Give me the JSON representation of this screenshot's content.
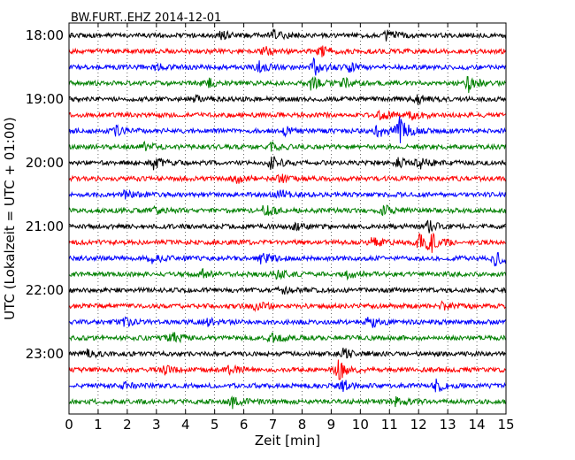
{
  "chart_data": {
    "type": "line",
    "title": "BW.FURT..EHZ 2014-12-01",
    "xlabel": "Zeit  [min]",
    "ylabel": "UTC (Lokalzeit = UTC + 01:00)",
    "xlim": [
      0,
      15
    ],
    "x_ticks": [
      "0",
      "1",
      "2",
      "3",
      "4",
      "5",
      "6",
      "7",
      "8",
      "9",
      "10",
      "11",
      "12",
      "13",
      "14",
      "15"
    ],
    "y_tick_labels": [
      "18:00",
      "19:00",
      "20:00",
      "21:00",
      "22:00",
      "23:00"
    ],
    "rows_per_hour": 4,
    "row_minutes": 15,
    "color_cycle": [
      "#000000",
      "#ff0000",
      "#0000ff",
      "#008000"
    ],
    "grid": true,
    "legend": "none",
    "trace_rows": [
      {
        "start": "18:00",
        "color": "#000000",
        "events": [
          {
            "t": 7.0,
            "a": 1.4
          },
          {
            "t": 10.9,
            "a": 1.4
          },
          {
            "t": 5.2,
            "a": 1.1
          }
        ]
      },
      {
        "start": "18:15",
        "color": "#ff0000",
        "events": [
          {
            "t": 8.6,
            "a": 1.7
          },
          {
            "t": 6.7,
            "a": 1.1
          }
        ]
      },
      {
        "start": "18:30",
        "color": "#0000ff",
        "events": [
          {
            "t": 8.4,
            "a": 2.6
          },
          {
            "t": 6.5,
            "a": 1.6
          },
          {
            "t": 3.0,
            "a": 1.3
          },
          {
            "t": 9.6,
            "a": 1.0
          }
        ]
      },
      {
        "start": "18:45",
        "color": "#008000",
        "events": [
          {
            "t": 8.3,
            "a": 1.8
          },
          {
            "t": 13.7,
            "a": 2.3
          },
          {
            "t": 9.4,
            "a": 1.3
          },
          {
            "t": 4.8,
            "a": 1.0
          }
        ]
      },
      {
        "start": "19:00",
        "color": "#000000",
        "events": [
          {
            "t": 11.9,
            "a": 1.4
          },
          {
            "t": 4.2,
            "a": 1.0
          }
        ]
      },
      {
        "start": "19:15",
        "color": "#ff0000",
        "events": [
          {
            "t": 11.8,
            "a": 1.6
          },
          {
            "t": 10.7,
            "a": 1.3
          }
        ]
      },
      {
        "start": "19:30",
        "color": "#0000ff",
        "events": [
          {
            "t": 11.3,
            "a": 4.0
          },
          {
            "t": 10.6,
            "a": 2.2
          },
          {
            "t": 1.6,
            "a": 1.2
          },
          {
            "t": 7.4,
            "a": 1.0
          }
        ]
      },
      {
        "start": "19:45",
        "color": "#008000",
        "events": [
          {
            "t": 6.9,
            "a": 1.4
          },
          {
            "t": 2.6,
            "a": 1.0
          }
        ]
      },
      {
        "start": "20:00",
        "color": "#000000",
        "events": [
          {
            "t": 2.9,
            "a": 1.6
          },
          {
            "t": 6.9,
            "a": 2.0
          },
          {
            "t": 12.0,
            "a": 1.6
          },
          {
            "t": 11.3,
            "a": 1.1
          }
        ]
      },
      {
        "start": "20:15",
        "color": "#ff0000",
        "events": [
          {
            "t": 5.7,
            "a": 1.3
          },
          {
            "t": 7.2,
            "a": 1.2
          }
        ]
      },
      {
        "start": "20:30",
        "color": "#0000ff",
        "events": [
          {
            "t": 7.2,
            "a": 1.4
          },
          {
            "t": 1.9,
            "a": 1.1
          }
        ]
      },
      {
        "start": "20:45",
        "color": "#008000",
        "events": [
          {
            "t": 6.7,
            "a": 1.6
          },
          {
            "t": 10.8,
            "a": 1.4
          },
          {
            "t": 2.9,
            "a": 1.0
          }
        ]
      },
      {
        "start": "21:00",
        "color": "#000000",
        "events": [
          {
            "t": 12.3,
            "a": 1.6
          },
          {
            "t": 7.7,
            "a": 1.0
          }
        ]
      },
      {
        "start": "21:15",
        "color": "#ff0000",
        "events": [
          {
            "t": 12.0,
            "a": 3.0
          },
          {
            "t": 12.4,
            "a": 2.2
          },
          {
            "t": 10.4,
            "a": 1.2
          }
        ]
      },
      {
        "start": "21:30",
        "color": "#0000ff",
        "events": [
          {
            "t": 14.6,
            "a": 2.0
          },
          {
            "t": 6.6,
            "a": 1.7
          },
          {
            "t": 2.8,
            "a": 1.4
          }
        ]
      },
      {
        "start": "21:45",
        "color": "#008000",
        "events": [
          {
            "t": 4.6,
            "a": 1.4
          },
          {
            "t": 7.1,
            "a": 1.2
          },
          {
            "t": 9.6,
            "a": 1.4
          }
        ]
      },
      {
        "start": "22:00",
        "color": "#000000",
        "events": [
          {
            "t": 7.3,
            "a": 1.0
          }
        ]
      },
      {
        "start": "22:15",
        "color": "#ff0000",
        "events": [
          {
            "t": 6.4,
            "a": 1.4
          },
          {
            "t": 12.8,
            "a": 1.1
          }
        ]
      },
      {
        "start": "22:30",
        "color": "#0000ff",
        "events": [
          {
            "t": 10.3,
            "a": 1.8
          },
          {
            "t": 1.9,
            "a": 1.0
          },
          {
            "t": 4.7,
            "a": 1.0
          }
        ]
      },
      {
        "start": "22:45",
        "color": "#008000",
        "events": [
          {
            "t": 3.5,
            "a": 1.6
          },
          {
            "t": 6.9,
            "a": 1.2
          }
        ]
      },
      {
        "start": "23:00",
        "color": "#000000",
        "events": [
          {
            "t": 9.4,
            "a": 1.6
          },
          {
            "t": 0.6,
            "a": 1.0
          }
        ]
      },
      {
        "start": "23:15",
        "color": "#ff0000",
        "events": [
          {
            "t": 9.2,
            "a": 3.2
          },
          {
            "t": 3.2,
            "a": 1.4
          },
          {
            "t": 5.5,
            "a": 1.1
          }
        ]
      },
      {
        "start": "23:30",
        "color": "#0000ff",
        "events": [
          {
            "t": 12.6,
            "a": 1.6
          },
          {
            "t": 1.8,
            "a": 1.0
          },
          {
            "t": 9.4,
            "a": 1.4
          }
        ]
      },
      {
        "start": "23:45",
        "color": "#008000",
        "events": [
          {
            "t": 5.6,
            "a": 1.6
          },
          {
            "t": 11.2,
            "a": 1.2
          }
        ]
      }
    ]
  }
}
